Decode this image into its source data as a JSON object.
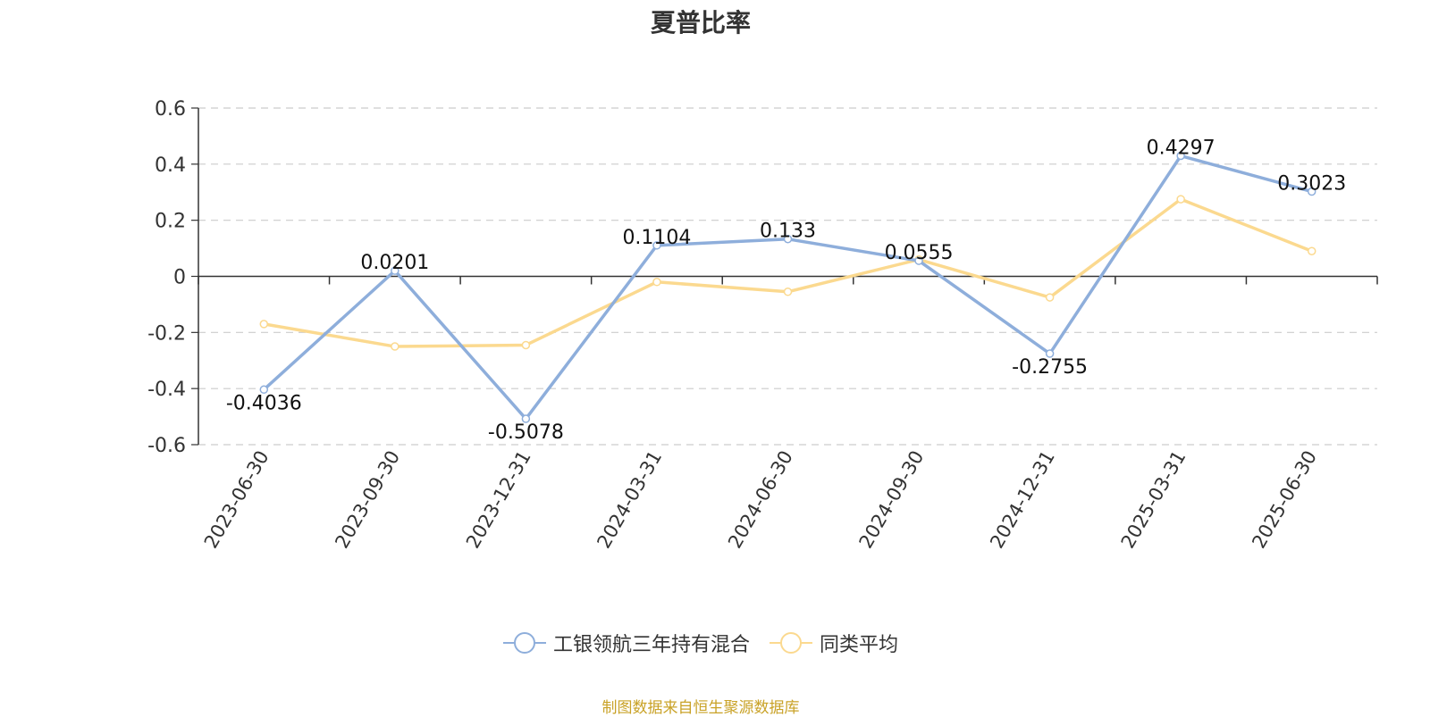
{
  "chart_data": {
    "type": "line",
    "title": "夏普比率",
    "categories": [
      "2023-06-30",
      "2023-09-30",
      "2023-12-31",
      "2024-03-31",
      "2024-06-30",
      "2024-09-30",
      "2024-12-31",
      "2025-03-31",
      "2025-06-30"
    ],
    "series": [
      {
        "name": "工银领航三年持有混合",
        "color": "#8eaedb",
        "values": [
          -0.4036,
          0.0201,
          -0.5078,
          0.1104,
          0.133,
          0.0555,
          -0.2755,
          0.4297,
          0.3023
        ],
        "labels": [
          "-0.4036",
          "0.0201",
          "-0.5078",
          "0.1104",
          "0.133",
          "0.0555",
          "-0.2755",
          "0.4297",
          "0.3023"
        ]
      },
      {
        "name": "同类平均",
        "color": "#fbd98f",
        "values": [
          -0.17,
          -0.25,
          -0.245,
          -0.02,
          -0.055,
          0.06,
          -0.075,
          0.275,
          0.09
        ]
      }
    ],
    "yticks": [
      "0.6",
      "0.4",
      "0.2",
      "0",
      "-0.2",
      "-0.4",
      "-0.6"
    ],
    "ylim": [
      -0.6,
      0.6
    ],
    "grid": true,
    "legend_position": "bottom-center"
  },
  "source_text": "制图数据来自恒生聚源数据库"
}
